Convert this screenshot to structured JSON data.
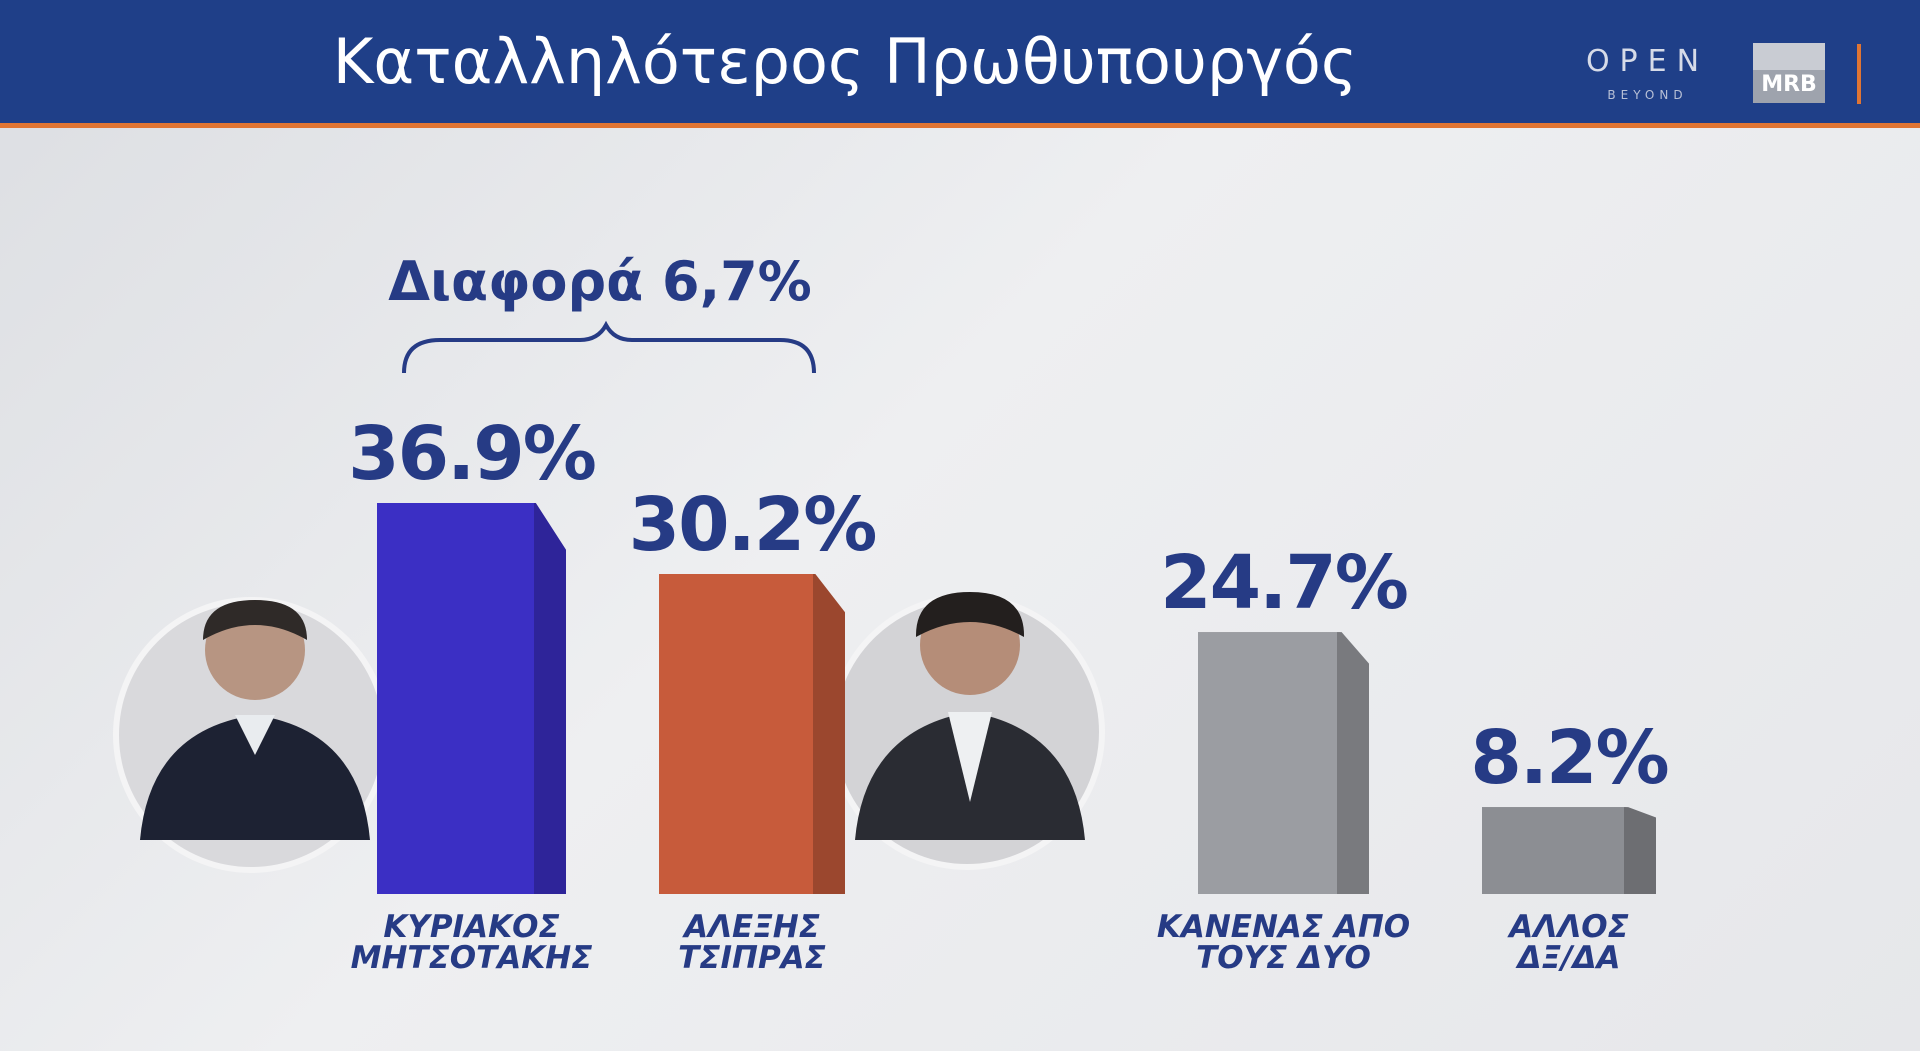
{
  "chart_data": {
    "type": "bar",
    "title": "Καταλληλότερος Πρωθυπουργός",
    "annotation": "Διαφορά 6,7%",
    "brand": {
      "channel": "OPEN",
      "tagline": "BEYOND",
      "pollster": "MRB"
    },
    "categories": [
      "ΚΥΡΙΑΚΟΣ\nΜΗΤΣΟΤΑΚΗΣ",
      "ΑΛΕΞΗΣ\nΤΣΙΠΡΑΣ",
      "ΚΑΝΕΝΑΣ ΑΠΟ\nΤΟΥΣ ΔΥΟ",
      "ΑΛΛΟΣ\nΔΞ/ΔΑ"
    ],
    "values": [
      36.9,
      30.2,
      24.7,
      8.2
    ],
    "value_labels": [
      "36.9%",
      "30.2%",
      "24.7%",
      "8.2%"
    ],
    "colors": [
      "#3b2fc4",
      "#c75b3b",
      "#9b9da2",
      "#8c8e93"
    ]
  }
}
